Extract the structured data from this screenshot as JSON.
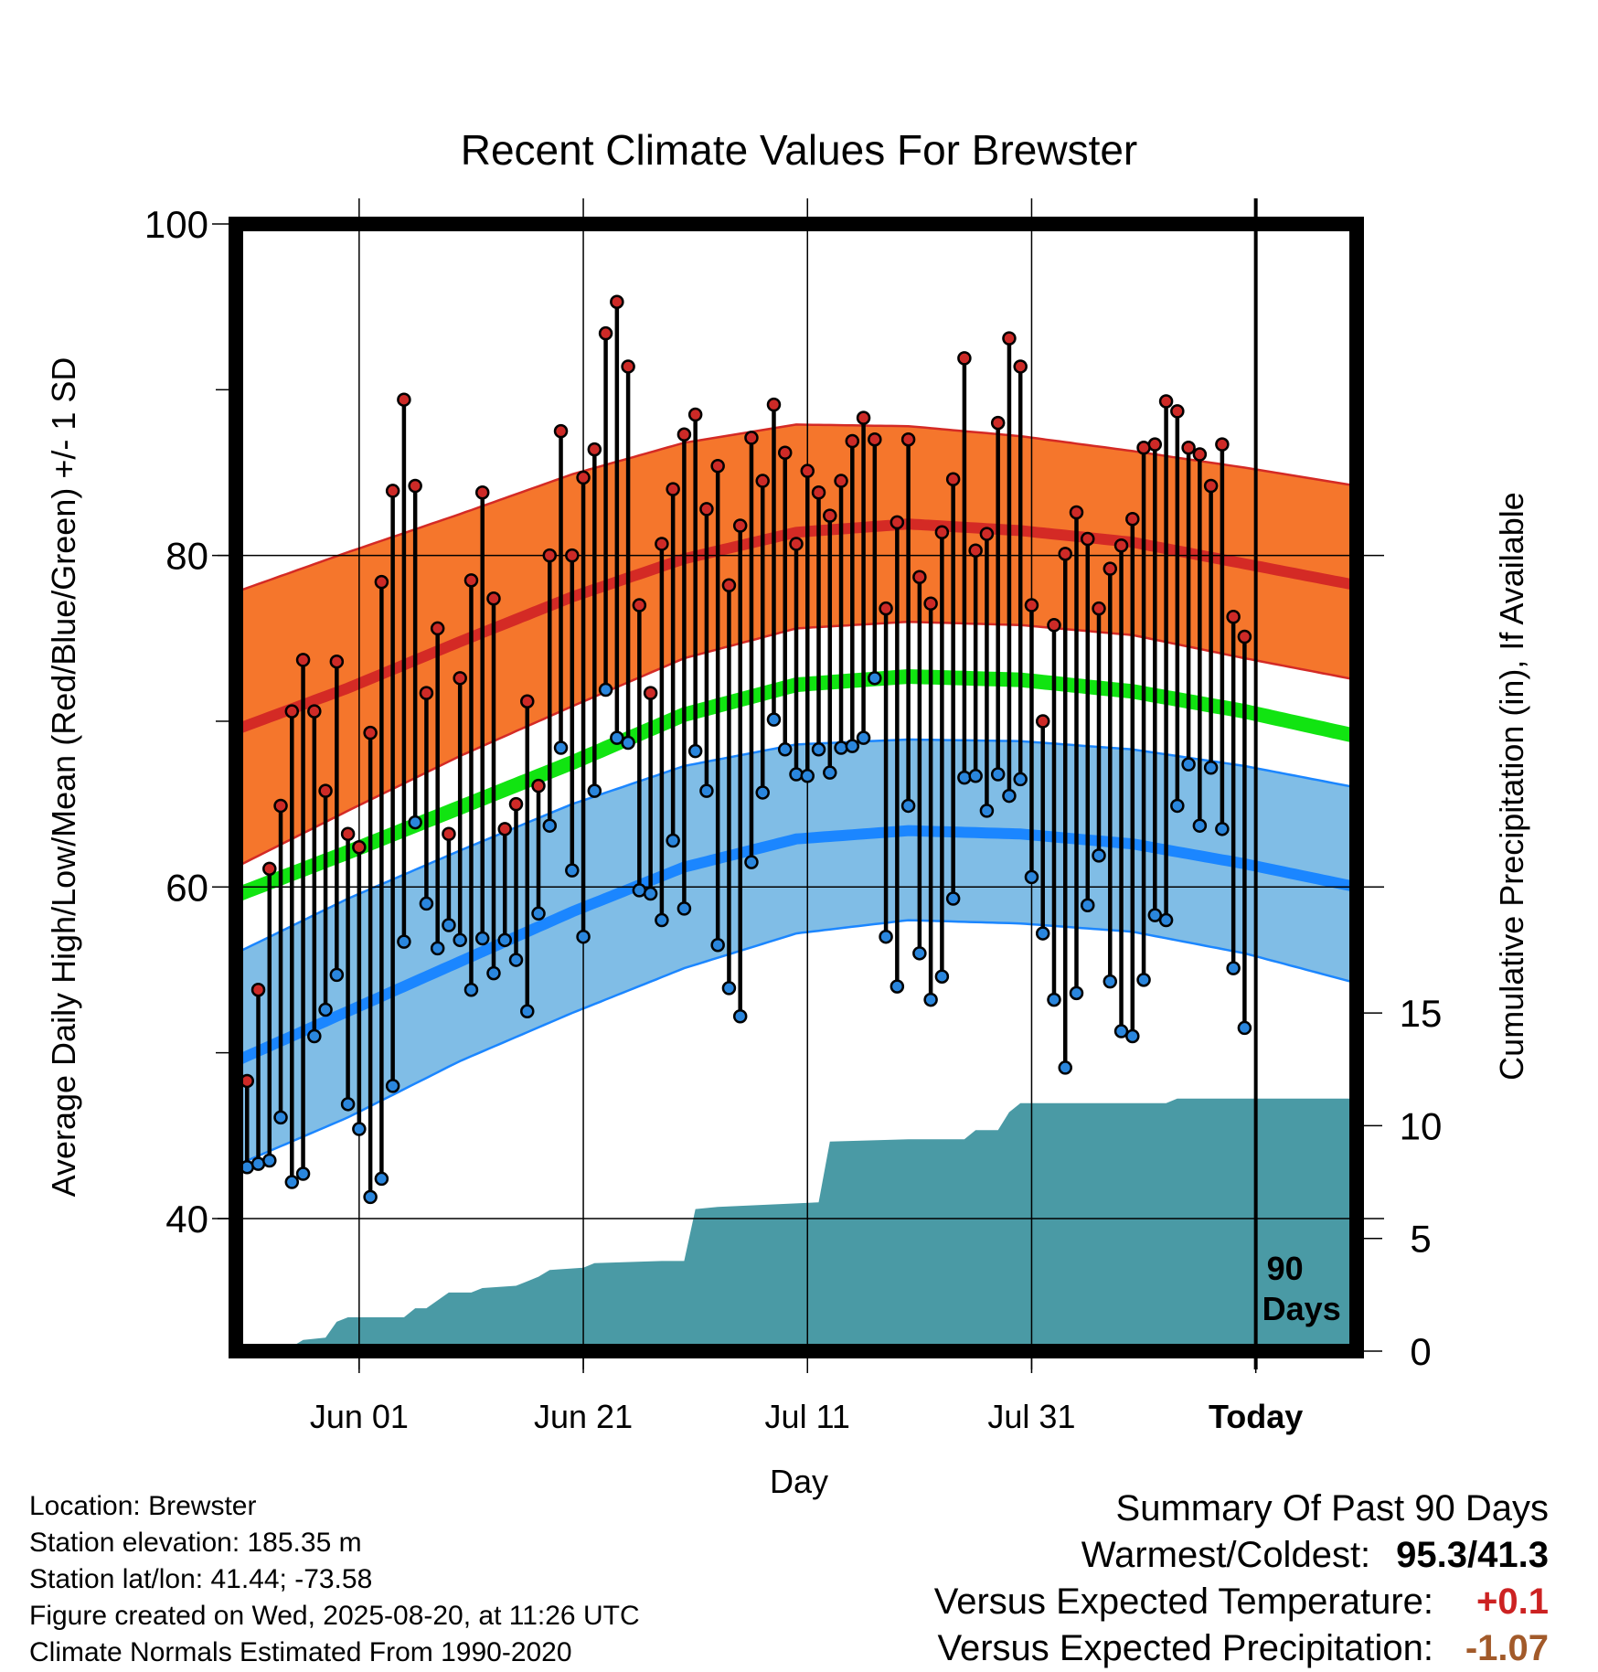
{
  "chart_data": {
    "type": "line",
    "title": "Recent Climate Values For Brewster",
    "xlabel": "Day",
    "ylabel_left": "Average Daily High/Low/Mean (Red/Blue/Green) +/- 1 SD",
    "ylabel_right": "Cumulative Precipitation (in), If Available",
    "x_ticks": [
      {
        "day": 11,
        "label": "Jun 01"
      },
      {
        "day": 31,
        "label": "Jun 21"
      },
      {
        "day": 51,
        "label": "Jul 11"
      },
      {
        "day": 71,
        "label": "Jul 31"
      },
      {
        "day": 91,
        "label": "Today"
      }
    ],
    "y_left_ticks": [
      40,
      60,
      80,
      100
    ],
    "y_left_lim": [
      32,
      100
    ],
    "y_right_ticks": [
      0,
      5,
      10,
      15
    ],
    "y_right_lim": [
      0,
      50
    ],
    "xlim": [
      0,
      100
    ],
    "today_marker": {
      "day": 91,
      "label_line1": "90",
      "label_line2": "Days"
    },
    "normal_high_mean": [
      [
        0,
        69.5
      ],
      [
        10,
        72.0
      ],
      [
        20,
        74.8
      ],
      [
        30,
        77.5
      ],
      [
        40,
        79.8
      ],
      [
        50,
        81.4
      ],
      [
        60,
        81.9
      ],
      [
        70,
        81.5
      ],
      [
        80,
        80.8
      ],
      [
        90,
        79.5
      ],
      [
        100,
        78.2
      ]
    ],
    "normal_high_upper": [
      [
        0,
        77.8
      ],
      [
        10,
        80.2
      ],
      [
        20,
        82.5
      ],
      [
        30,
        84.9
      ],
      [
        40,
        86.8
      ],
      [
        50,
        87.9
      ],
      [
        60,
        87.8
      ],
      [
        70,
        87.2
      ],
      [
        80,
        86.3
      ],
      [
        90,
        85.3
      ],
      [
        100,
        84.2
      ]
    ],
    "normal_high_lower": [
      [
        0,
        61.2
      ],
      [
        10,
        64.6
      ],
      [
        20,
        67.9
      ],
      [
        30,
        70.9
      ],
      [
        40,
        73.8
      ],
      [
        50,
        75.6
      ],
      [
        60,
        76.0
      ],
      [
        70,
        75.8
      ],
      [
        80,
        75.2
      ],
      [
        90,
        73.8
      ],
      [
        100,
        72.5
      ]
    ],
    "normal_mean": [
      [
        0,
        59.5
      ],
      [
        10,
        62.1
      ],
      [
        20,
        64.8
      ],
      [
        30,
        67.5
      ],
      [
        40,
        70.4
      ],
      [
        50,
        72.2
      ],
      [
        60,
        72.7
      ],
      [
        70,
        72.5
      ],
      [
        80,
        71.8
      ],
      [
        90,
        70.6
      ],
      [
        100,
        69.1
      ]
    ],
    "normal_low_mean": [
      [
        0,
        49.5
      ],
      [
        10,
        52.5
      ],
      [
        20,
        55.5
      ],
      [
        30,
        58.5
      ],
      [
        40,
        61.2
      ],
      [
        50,
        62.9
      ],
      [
        60,
        63.4
      ],
      [
        70,
        63.2
      ],
      [
        80,
        62.6
      ],
      [
        90,
        61.4
      ],
      [
        100,
        60.0
      ]
    ],
    "normal_low_upper": [
      [
        0,
        56.0
      ],
      [
        10,
        59.3
      ],
      [
        20,
        62.2
      ],
      [
        30,
        65.0
      ],
      [
        40,
        67.3
      ],
      [
        50,
        68.6
      ],
      [
        60,
        68.9
      ],
      [
        70,
        68.8
      ],
      [
        80,
        68.3
      ],
      [
        90,
        67.3
      ],
      [
        100,
        66.0
      ]
    ],
    "normal_low_lower": [
      [
        0,
        43.2
      ],
      [
        10,
        46.1
      ],
      [
        20,
        49.5
      ],
      [
        30,
        52.4
      ],
      [
        40,
        55.1
      ],
      [
        50,
        57.2
      ],
      [
        60,
        58.0
      ],
      [
        70,
        57.8
      ],
      [
        80,
        57.3
      ],
      [
        90,
        56.0
      ],
      [
        100,
        54.2
      ]
    ],
    "daily_high": [
      48.3,
      53.8,
      61.1,
      64.9,
      70.6,
      73.7,
      70.6,
      65.8,
      73.6,
      63.2,
      62.4,
      69.3,
      78.4,
      83.9,
      89.4,
      84.2,
      71.7,
      75.6,
      63.2,
      72.6,
      78.5,
      83.8,
      77.4,
      63.5,
      65.0,
      71.2,
      66.1,
      80.0,
      87.5,
      80.0,
      84.7,
      86.4,
      93.4,
      95.3,
      91.4,
      77.0,
      71.7,
      80.7,
      84.0,
      87.3,
      88.5,
      82.8,
      85.4,
      78.2,
      81.8,
      87.1,
      84.5,
      89.1,
      86.2,
      80.7,
      85.1,
      83.8,
      82.4,
      84.5,
      86.9,
      88.3,
      87.0,
      76.8,
      82.0,
      87.0,
      78.7,
      77.1,
      81.4,
      84.6,
      91.9,
      80.3,
      81.3,
      88.0,
      93.1,
      91.4,
      77.0,
      70.0,
      75.8,
      80.1,
      82.6,
      81.0,
      76.8,
      79.2,
      80.6,
      82.2,
      86.5,
      86.7,
      89.3,
      88.7,
      86.5,
      86.1,
      84.2,
      86.7,
      76.3,
      75.1
    ],
    "daily_low": [
      43.1,
      43.3,
      43.5,
      46.1,
      42.2,
      42.7,
      51.0,
      52.6,
      54.7,
      46.9,
      45.4,
      41.3,
      42.4,
      48.0,
      56.7,
      63.9,
      59.0,
      56.3,
      57.7,
      56.8,
      53.8,
      56.9,
      54.8,
      56.8,
      55.6,
      52.5,
      58.4,
      63.7,
      68.4,
      61.0,
      57.0,
      65.8,
      71.9,
      69.0,
      68.7,
      59.8,
      59.6,
      58.0,
      62.8,
      58.7,
      68.2,
      65.8,
      56.5,
      53.9,
      52.2,
      61.5,
      65.7,
      70.1,
      68.3,
      66.8,
      66.7,
      68.3,
      66.9,
      68.4,
      68.5,
      69.0,
      72.6,
      57.0,
      54.0,
      64.9,
      56.0,
      53.2,
      54.6,
      59.3,
      66.6,
      66.7,
      64.6,
      66.8,
      65.5,
      66.5,
      60.6,
      57.2,
      53.2,
      49.1,
      53.6,
      58.9,
      61.9,
      54.3,
      51.3,
      51.0,
      54.4,
      58.3,
      58.0,
      64.9,
      67.4,
      63.7,
      67.2,
      63.5,
      55.1,
      51.5
    ],
    "cumulative_precip": [
      [
        0,
        0.0
      ],
      [
        1,
        0.1
      ],
      [
        2,
        0.2
      ],
      [
        5,
        0.2
      ],
      [
        6,
        0.5
      ],
      [
        8,
        0.6
      ],
      [
        9,
        1.3
      ],
      [
        10,
        1.5
      ],
      [
        15,
        1.5
      ],
      [
        16,
        1.9
      ],
      [
        17,
        1.9
      ],
      [
        19,
        2.6
      ],
      [
        21,
        2.6
      ],
      [
        22,
        2.8
      ],
      [
        25,
        2.9
      ],
      [
        26,
        3.1
      ],
      [
        27,
        3.3
      ],
      [
        28,
        3.6
      ],
      [
        31,
        3.7
      ],
      [
        32,
        3.9
      ],
      [
        38,
        4.0
      ],
      [
        40,
        4.0
      ],
      [
        41,
        6.3
      ],
      [
        43,
        6.4
      ],
      [
        52,
        6.6
      ],
      [
        53,
        9.3
      ],
      [
        60,
        9.4
      ],
      [
        65,
        9.4
      ],
      [
        66,
        9.8
      ],
      [
        68,
        9.8
      ],
      [
        69,
        10.6
      ],
      [
        70,
        11.0
      ],
      [
        83,
        11.0
      ],
      [
        84,
        11.2
      ],
      [
        100,
        11.2
      ]
    ],
    "grid": true
  },
  "info": {
    "location": "Location: Brewster",
    "elevation": "Station elevation: 185.35 m",
    "latlon": "Station lat/lon: 41.44; -73.58",
    "created": "Figure created on Wed, 2025-08-20, at 11:26 UTC",
    "normals": "Climate Normals Estimated From 1990-2020"
  },
  "summary": {
    "heading": "Summary Of Past 90 Days",
    "warm_cold_label": "Warmest/Coldest:",
    "warm_cold_value": "95.3/41.3",
    "temp_label": "Versus Expected Temperature:",
    "temp_value": "+0.1",
    "precip_label": "Versus Expected Precipitation:",
    "precip_value": "-1.07"
  },
  "colors": {
    "high_band": "#f5762c",
    "high_line": "#d42a25",
    "mean_line": "#11e411",
    "low_band": "#80bde6",
    "low_line": "#1b86ff",
    "precip_fill": "#4a9aa5",
    "high_dot": "#cd2a27",
    "low_dot": "#2a86dd",
    "temp_value": "#cc2222",
    "precip_value": "#a25a2a"
  }
}
